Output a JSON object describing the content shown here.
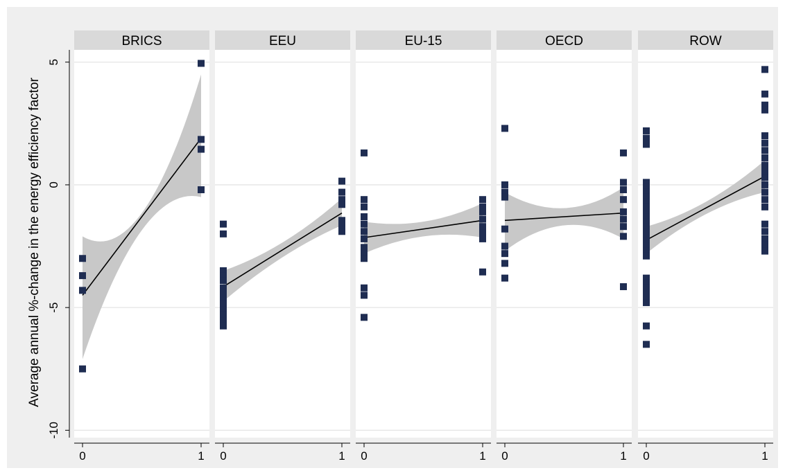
{
  "chart_data": {
    "type": "scatter",
    "ylabel": "Average annual %-change in the energy efficiency factor",
    "xlabel": "",
    "ylim": [
      -10.3,
      5.5
    ],
    "xlim": [
      -0.07,
      1.07
    ],
    "yticks": [
      5,
      0,
      -5,
      -10
    ],
    "xticks": [
      0,
      1
    ],
    "grid": true,
    "colors": {
      "marker": "#1f2d52",
      "ci_band": "#c8c8c8",
      "fit_line": "#000000",
      "strip": "#d9d9d9",
      "outer_bg": "#efefef"
    },
    "panels": [
      {
        "name": "BRICS",
        "points": [
          [
            0,
            -3
          ],
          [
            0,
            -3.7
          ],
          [
            0,
            -4.3
          ],
          [
            0,
            -7.5
          ],
          [
            1,
            4.95
          ],
          [
            1,
            1.85
          ],
          [
            1,
            1.45
          ],
          [
            1,
            -0.2
          ]
        ],
        "fit": [
          [
            0,
            -4.5
          ],
          [
            1,
            1.9
          ]
        ],
        "ci": [
          [
            0,
            -7.1,
            -2.1
          ],
          [
            0.5,
            -1.85,
            -1.15
          ],
          [
            1,
            -0.5,
            4.5
          ]
        ]
      },
      {
        "name": "EEU",
        "points": [
          [
            0,
            -1.6
          ],
          [
            0,
            -2
          ],
          [
            0,
            -3.5
          ],
          [
            0,
            -3.7
          ],
          [
            0,
            -3.9
          ],
          [
            0,
            -4.2
          ],
          [
            0,
            -4.35
          ],
          [
            0,
            -4.6
          ],
          [
            0,
            -4.85
          ],
          [
            0,
            -5.1
          ],
          [
            0,
            -5.3
          ],
          [
            0,
            -5.55
          ],
          [
            0,
            -5.75
          ],
          [
            1,
            0.15
          ],
          [
            1,
            -0.3
          ],
          [
            1,
            -0.6
          ],
          [
            1,
            -0.8
          ],
          [
            1,
            -1.45
          ],
          [
            1,
            -1.65
          ],
          [
            1,
            -1.9
          ]
        ],
        "fit": [
          [
            0,
            -4.15
          ],
          [
            1,
            -1.15
          ]
        ],
        "ci": [
          [
            0,
            -4.75,
            -3.5
          ],
          [
            0.5,
            -2.95,
            -2.35
          ],
          [
            1,
            -1.65,
            -0.55
          ]
        ]
      },
      {
        "name": "EU-15",
        "points": [
          [
            0,
            1.3
          ],
          [
            0,
            -0.6
          ],
          [
            0,
            -0.9
          ],
          [
            0,
            -1.3
          ],
          [
            0,
            -1.6
          ],
          [
            0,
            -1.9
          ],
          [
            0,
            -2.2
          ],
          [
            0,
            -2.55
          ],
          [
            0,
            -2.8
          ],
          [
            0,
            -3
          ],
          [
            0,
            -4.2
          ],
          [
            0,
            -4.5
          ],
          [
            0,
            -5.4
          ],
          [
            1,
            -0.6
          ],
          [
            1,
            -0.9
          ],
          [
            1,
            -1.1
          ],
          [
            1,
            -1.4
          ],
          [
            1,
            -1.7
          ],
          [
            1,
            -1.95
          ],
          [
            1,
            -2.2
          ],
          [
            1,
            -3.55
          ]
        ],
        "fit": [
          [
            0,
            -2.15
          ],
          [
            1,
            -1.45
          ]
        ],
        "ci": [
          [
            0,
            -2.8,
            -1.5
          ],
          [
            0.5,
            -2.1,
            -1.5
          ],
          [
            1,
            -2.15,
            -0.75
          ]
        ]
      },
      {
        "name": "OECD",
        "points": [
          [
            0,
            2.3
          ],
          [
            0,
            0
          ],
          [
            0,
            -0.3
          ],
          [
            0,
            -0.5
          ],
          [
            0,
            -1.8
          ],
          [
            0,
            -2.5
          ],
          [
            0,
            -2.8
          ],
          [
            0,
            -3.2
          ],
          [
            0,
            -3.8
          ],
          [
            1,
            1.3
          ],
          [
            1,
            0.1
          ],
          [
            1,
            -0.2
          ],
          [
            1,
            -0.6
          ],
          [
            1,
            -1.1
          ],
          [
            1,
            -1.4
          ],
          [
            1,
            -1.7
          ],
          [
            1,
            -2.1
          ],
          [
            1,
            -4.15
          ]
        ],
        "fit": [
          [
            0,
            -1.45
          ],
          [
            1,
            -1.15
          ]
        ],
        "ci": [
          [
            0,
            -2.7,
            -0.3
          ],
          [
            0.5,
            -1.65,
            -0.95
          ],
          [
            1,
            -2.2,
            -0.1
          ]
        ]
      },
      {
        "name": "ROW",
        "points": [
          [
            0,
            2.2
          ],
          [
            0,
            1.9
          ],
          [
            0,
            1.65
          ],
          [
            0,
            0.1
          ],
          [
            0,
            -0.1
          ],
          [
            0,
            -0.3
          ],
          [
            0,
            -0.5
          ],
          [
            0,
            -0.7
          ],
          [
            0,
            -0.9
          ],
          [
            0,
            -1.1
          ],
          [
            0,
            -1.3
          ],
          [
            0,
            -1.5
          ],
          [
            0,
            -1.7
          ],
          [
            0,
            -1.9
          ],
          [
            0,
            -2.1
          ],
          [
            0,
            -2.3
          ],
          [
            0,
            -2.5
          ],
          [
            0,
            -2.7
          ],
          [
            0,
            -2.9
          ],
          [
            0,
            -3.8
          ],
          [
            0,
            -4.0
          ],
          [
            0,
            -4.2
          ],
          [
            0,
            -4.4
          ],
          [
            0,
            -4.6
          ],
          [
            0,
            -4.8
          ],
          [
            0,
            -5.75
          ],
          [
            0,
            -6.5
          ],
          [
            1,
            4.7
          ],
          [
            1,
            3.7
          ],
          [
            1,
            3.25
          ],
          [
            1,
            3.05
          ],
          [
            1,
            2
          ],
          [
            1,
            1.7
          ],
          [
            1,
            1.4
          ],
          [
            1,
            1.1
          ],
          [
            1,
            0.8
          ],
          [
            1,
            0.55
          ],
          [
            1,
            0.3
          ],
          [
            1,
            0
          ],
          [
            1,
            -0.3
          ],
          [
            1,
            -0.6
          ],
          [
            1,
            -0.9
          ],
          [
            1,
            -1.6
          ],
          [
            1,
            -1.9
          ],
          [
            1,
            -2.2
          ],
          [
            1,
            -2.45
          ],
          [
            1,
            -2.7
          ]
        ],
        "fit": [
          [
            0,
            -2.25
          ],
          [
            1,
            0.35
          ]
        ],
        "ci": [
          [
            0,
            -2.8,
            -1.7
          ],
          [
            0.5,
            -1.2,
            -0.7
          ],
          [
            1,
            -0.3,
            1.0
          ]
        ]
      }
    ]
  }
}
